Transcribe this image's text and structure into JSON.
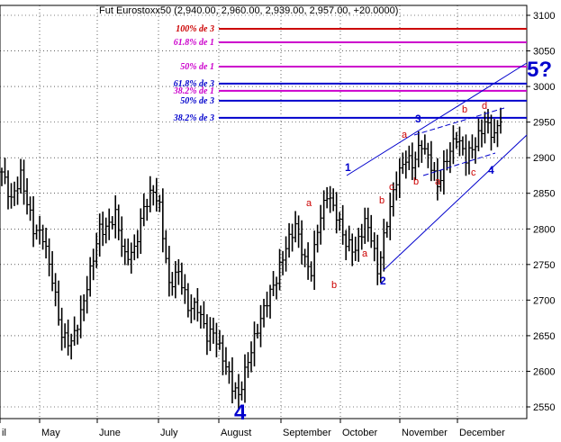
{
  "chart_data": {
    "type": "ohlc",
    "title": "Fut Eurostoxx50 (2,940.00, 2,960.00, 2,939.00, 2,957.00, +20.0000)",
    "y_axis": {
      "min": 2530,
      "max": 3115,
      "ticks": [
        2550,
        2600,
        2650,
        2700,
        2750,
        2800,
        2850,
        2900,
        2950,
        3000,
        3050,
        3100
      ],
      "side": "right"
    },
    "x_axis": {
      "months": [
        "il",
        "May",
        "June",
        "July",
        "August",
        "September",
        "October",
        "November",
        "December"
      ]
    },
    "anchors": [
      [
        0,
        2880
      ],
      [
        3,
        2840
      ],
      [
        6,
        2875
      ],
      [
        10,
        2800
      ],
      [
        13,
        2790
      ],
      [
        16,
        2730
      ],
      [
        19,
        2650
      ],
      [
        22,
        2640
      ],
      [
        25,
        2680
      ],
      [
        28,
        2740
      ],
      [
        31,
        2800
      ],
      [
        33,
        2800
      ],
      [
        36,
        2820
      ],
      [
        39,
        2760
      ],
      [
        42,
        2770
      ],
      [
        45,
        2830
      ],
      [
        48,
        2855
      ],
      [
        50,
        2830
      ],
      [
        53,
        2720
      ],
      [
        56,
        2740
      ],
      [
        59,
        2690
      ],
      [
        62,
        2690
      ],
      [
        65,
        2650
      ],
      [
        67,
        2655
      ],
      [
        70,
        2620
      ],
      [
        73,
        2580
      ],
      [
        75,
        2565
      ],
      [
        78,
        2615
      ],
      [
        81,
        2660
      ],
      [
        84,
        2700
      ],
      [
        87,
        2730
      ],
      [
        90,
        2775
      ],
      [
        93,
        2805
      ],
      [
        96,
        2755
      ],
      [
        98,
        2740
      ],
      [
        100,
        2800
      ],
      [
        103,
        2850
      ],
      [
        106,
        2820
      ],
      [
        109,
        2780
      ],
      [
        112,
        2770
      ],
      [
        115,
        2810
      ],
      [
        117,
        2790
      ],
      [
        119,
        2740
      ],
      [
        122,
        2810
      ],
      [
        125,
        2870
      ],
      [
        128,
        2900
      ],
      [
        130,
        2890
      ],
      [
        133,
        2920
      ],
      [
        136,
        2890
      ],
      [
        138,
        2860
      ],
      [
        141,
        2900
      ],
      [
        144,
        2930
      ],
      [
        147,
        2900
      ],
      [
        150,
        2920
      ],
      [
        153,
        2950
      ],
      [
        156,
        2930
      ],
      [
        158,
        2957
      ]
    ],
    "fib_levels": [
      {
        "label": "100% de 3",
        "value": 3081,
        "color": "#cc0000"
      },
      {
        "label": "61.8% de 1",
        "value": 3062,
        "color": "#cc00cc"
      },
      {
        "label": "50% de 1",
        "value": 3028,
        "color": "#cc00cc"
      },
      {
        "label": "61.8% de 3",
        "value": 3004,
        "color": "#0000cc"
      },
      {
        "label": "38.2% de 1",
        "value": 2994,
        "color": "#cc00cc"
      },
      {
        "label": "50% de 3",
        "value": 2980,
        "color": "#0000cc"
      },
      {
        "label": "38.2% de 3",
        "value": 2956,
        "color": "#0000cc"
      }
    ],
    "wave_labels_small": [
      "a",
      "b",
      "a",
      "b",
      "c",
      "a",
      "b",
      "a",
      "b",
      "c",
      "d"
    ],
    "wave_labels_mid": [
      "1",
      "2",
      "3",
      "4"
    ],
    "wave_labels_big": [
      "4",
      "5?"
    ]
  }
}
